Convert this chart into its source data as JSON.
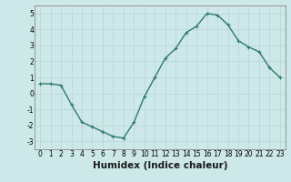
{
  "x": [
    0,
    1,
    2,
    3,
    4,
    5,
    6,
    7,
    8,
    9,
    10,
    11,
    12,
    13,
    14,
    15,
    16,
    17,
    18,
    19,
    20,
    21,
    22,
    23
  ],
  "y": [
    0.6,
    0.6,
    0.5,
    -0.7,
    -1.8,
    -2.1,
    -2.4,
    -2.7,
    -2.8,
    -1.8,
    -0.2,
    1.0,
    2.2,
    2.8,
    3.8,
    4.2,
    5.0,
    4.9,
    4.3,
    3.3,
    2.9,
    2.6,
    1.6,
    1.0
  ],
  "line_color": "#2d7a6e",
  "marker": "+",
  "marker_size": 3,
  "marker_lw": 0.8,
  "line_width": 1.0,
  "background_color": "#cce8e8",
  "grid_color": "#b8d4d4",
  "xlabel": "Humidex (Indice chaleur)",
  "xlim": [
    -0.5,
    23.5
  ],
  "ylim": [
    -3.5,
    5.5
  ],
  "yticks": [
    -3,
    -2,
    -1,
    0,
    1,
    2,
    3,
    4,
    5
  ],
  "xticks": [
    0,
    1,
    2,
    3,
    4,
    5,
    6,
    7,
    8,
    9,
    10,
    11,
    12,
    13,
    14,
    15,
    16,
    17,
    18,
    19,
    20,
    21,
    22,
    23
  ],
  "tick_fontsize": 5.5,
  "xlabel_fontsize": 7.5,
  "spine_color": "#888888"
}
